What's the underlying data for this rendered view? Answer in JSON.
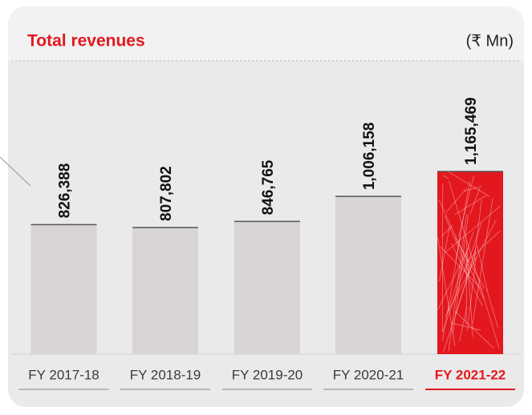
{
  "chart_data": {
    "type": "bar",
    "title": "Total revenues",
    "unit_label": "(₹ Mn)",
    "categories": [
      "FY 2017-18",
      "FY 2018-19",
      "FY 2019-20",
      "FY 2020-21",
      "FY 2021-22"
    ],
    "values": [
      826388,
      807802,
      846765,
      1006158,
      1165469
    ],
    "value_labels": [
      "826,388",
      "807,802",
      "846,765",
      "1,006,158",
      "1,165,469"
    ],
    "colors": [
      "#d8d4d7",
      "#d8d4d7",
      "#d8d4d7",
      "#d8d4d7",
      "#e3181f"
    ],
    "highlight_color": "#e3181f"
  }
}
